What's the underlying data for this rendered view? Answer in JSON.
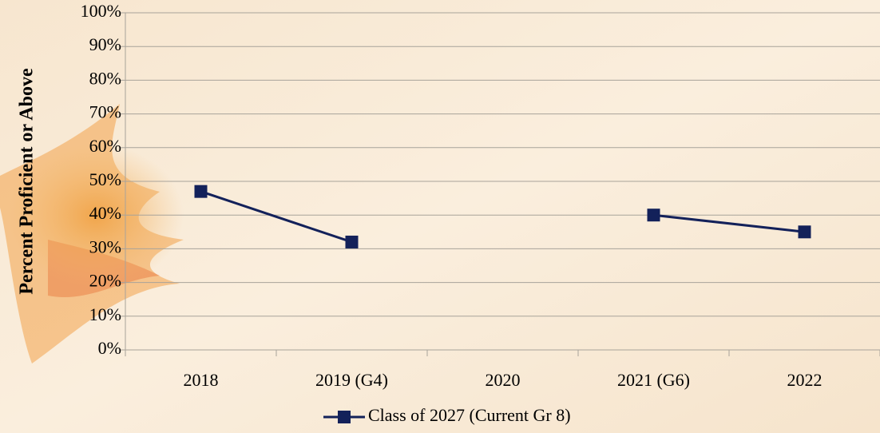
{
  "chart_data": {
    "type": "line",
    "y_label": "Percent Proficient or Above",
    "categories": [
      "2018",
      "2019 (G4)",
      "2020",
      "2021 (G6)",
      "2022"
    ],
    "series": [
      {
        "name": "Class of 2027 (Current Gr 8)",
        "color": "#13215a",
        "values": [
          47,
          32,
          null,
          40,
          35
        ]
      }
    ],
    "ylim": [
      0,
      100
    ],
    "yticks": [
      {
        "value": 0,
        "label": "0%"
      },
      {
        "value": 10,
        "label": "10%"
      },
      {
        "value": 20,
        "label": "20%"
      },
      {
        "value": 30,
        "label": "30%"
      },
      {
        "value": 40,
        "label": "40%"
      },
      {
        "value": 50,
        "label": "50%"
      },
      {
        "value": 60,
        "label": "60%"
      },
      {
        "value": 70,
        "label": "70%"
      },
      {
        "value": 80,
        "label": "80%"
      },
      {
        "value": 90,
        "label": "90%"
      },
      {
        "value": 100,
        "label": "100%"
      }
    ],
    "grid": true,
    "legend": "bottom"
  }
}
